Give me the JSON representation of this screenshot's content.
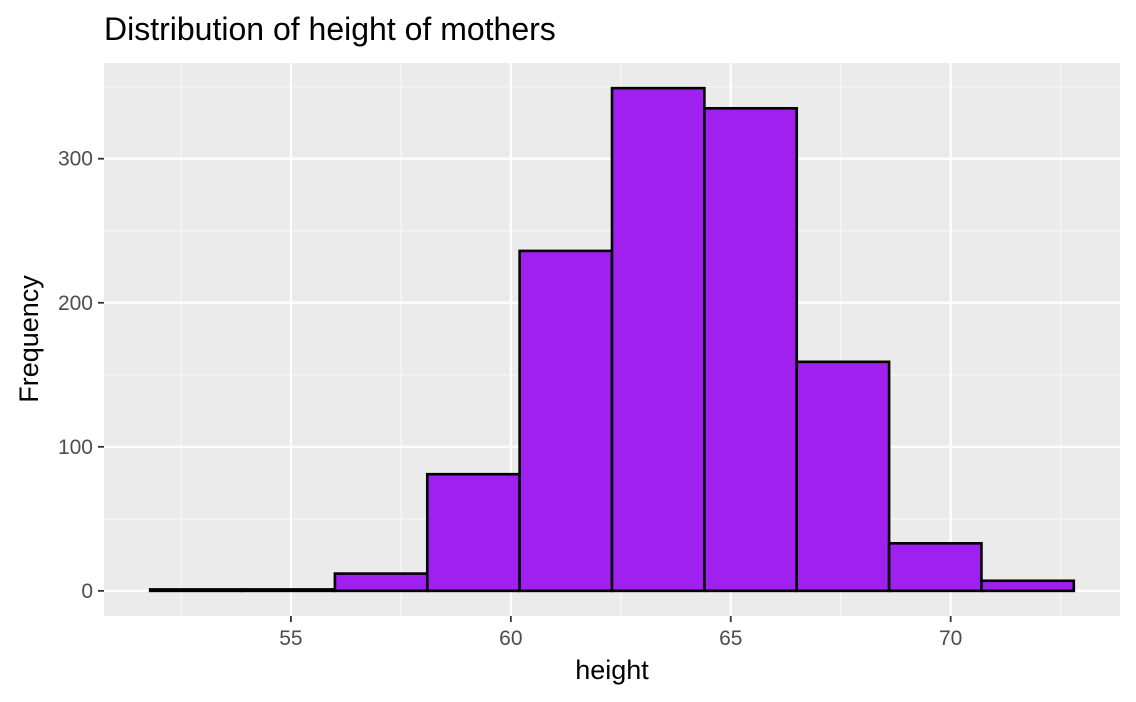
{
  "chart_data": {
    "type": "bar",
    "title": "Distribution of height of mothers",
    "xlabel": "height",
    "ylabel": "Frequency",
    "bins": [
      {
        "start": 51.8,
        "end": 53.9,
        "count": 1
      },
      {
        "start": 53.9,
        "end": 56.0,
        "count": 1
      },
      {
        "start": 56.0,
        "end": 58.1,
        "count": 12
      },
      {
        "start": 58.1,
        "end": 60.2,
        "count": 81
      },
      {
        "start": 60.2,
        "end": 62.3,
        "count": 236
      },
      {
        "start": 62.3,
        "end": 64.4,
        "count": 349
      },
      {
        "start": 64.4,
        "end": 66.5,
        "count": 335
      },
      {
        "start": 66.5,
        "end": 68.6,
        "count": 159
      },
      {
        "start": 68.6,
        "end": 70.7,
        "count": 33
      },
      {
        "start": 70.7,
        "end": 72.8,
        "count": 7
      }
    ],
    "xlim": [
      50.75,
      73.85
    ],
    "ylim": [
      -17.45,
      366.45
    ],
    "x_ticks": [
      55,
      60,
      65,
      70
    ],
    "x_tick_labels": [
      "55",
      "60",
      "65",
      "70"
    ],
    "x_minor_ticks": [
      52.5,
      57.5,
      62.5,
      67.5,
      72.5
    ],
    "y_ticks": [
      0,
      100,
      200,
      300
    ],
    "y_tick_labels": [
      "0",
      "100",
      "200",
      "300"
    ],
    "y_minor_ticks": [
      50,
      150,
      250,
      350
    ],
    "grid": true,
    "legend": "none",
    "colors": {
      "bar_fill": "#a020f0",
      "bar_outline": "#000000",
      "panel_background": "#ebebeb",
      "grid_major": "#ffffff",
      "grid_minor": "#f7f7f7",
      "tick_text": "#4d4d4d",
      "tick_mark": "#333333"
    }
  }
}
